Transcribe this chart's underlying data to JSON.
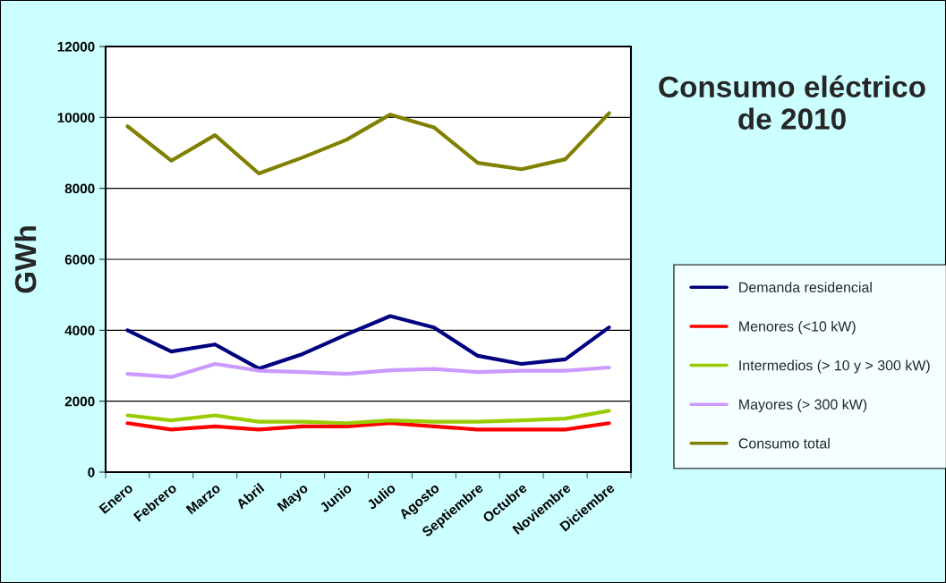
{
  "chart_data": {
    "type": "line",
    "title": "Consumo eléctrico de 2010",
    "ylabel": "GWh",
    "categories": [
      "Enero",
      "Febrero",
      "Marzo",
      "Abril",
      "Mayo",
      "Junio",
      "Julio",
      "Agosto",
      "Septiembre",
      "Octubre",
      "Noviembre",
      "Diciembre"
    ],
    "series": [
      {
        "name": "Demanda residencial",
        "color": "#000080",
        "values": [
          4000,
          3400,
          3600,
          2920,
          3330,
          3880,
          4400,
          4080,
          3280,
          3050,
          3180,
          4080
        ]
      },
      {
        "name": "Menores (<10 kW)",
        "color": "#ff0000",
        "values": [
          1380,
          1200,
          1290,
          1200,
          1290,
          1290,
          1380,
          1290,
          1200,
          1200,
          1200,
          1380
        ]
      },
      {
        "name": "Intermedios (> 10 y > 300 kW)",
        "color": "#99cc00",
        "values": [
          1600,
          1460,
          1600,
          1420,
          1420,
          1380,
          1460,
          1420,
          1420,
          1460,
          1510,
          1730
        ]
      },
      {
        "name": "Mayores (> 300 kW)",
        "color": "#cc99ff",
        "values": [
          2770,
          2680,
          3050,
          2860,
          2820,
          2770,
          2870,
          2910,
          2820,
          2860,
          2860,
          2950
        ]
      },
      {
        "name": "Consumo total",
        "color": "#808000",
        "values": [
          9750,
          8780,
          9500,
          8420,
          8870,
          9370,
          10080,
          9720,
          8720,
          8540,
          8820,
          10120
        ]
      }
    ],
    "ylim": [
      0,
      12000
    ],
    "yticks": [
      0,
      2000,
      4000,
      6000,
      8000,
      10000,
      12000
    ],
    "grid": "y",
    "legend": "right",
    "marker": "none",
    "line_style": "solid"
  }
}
